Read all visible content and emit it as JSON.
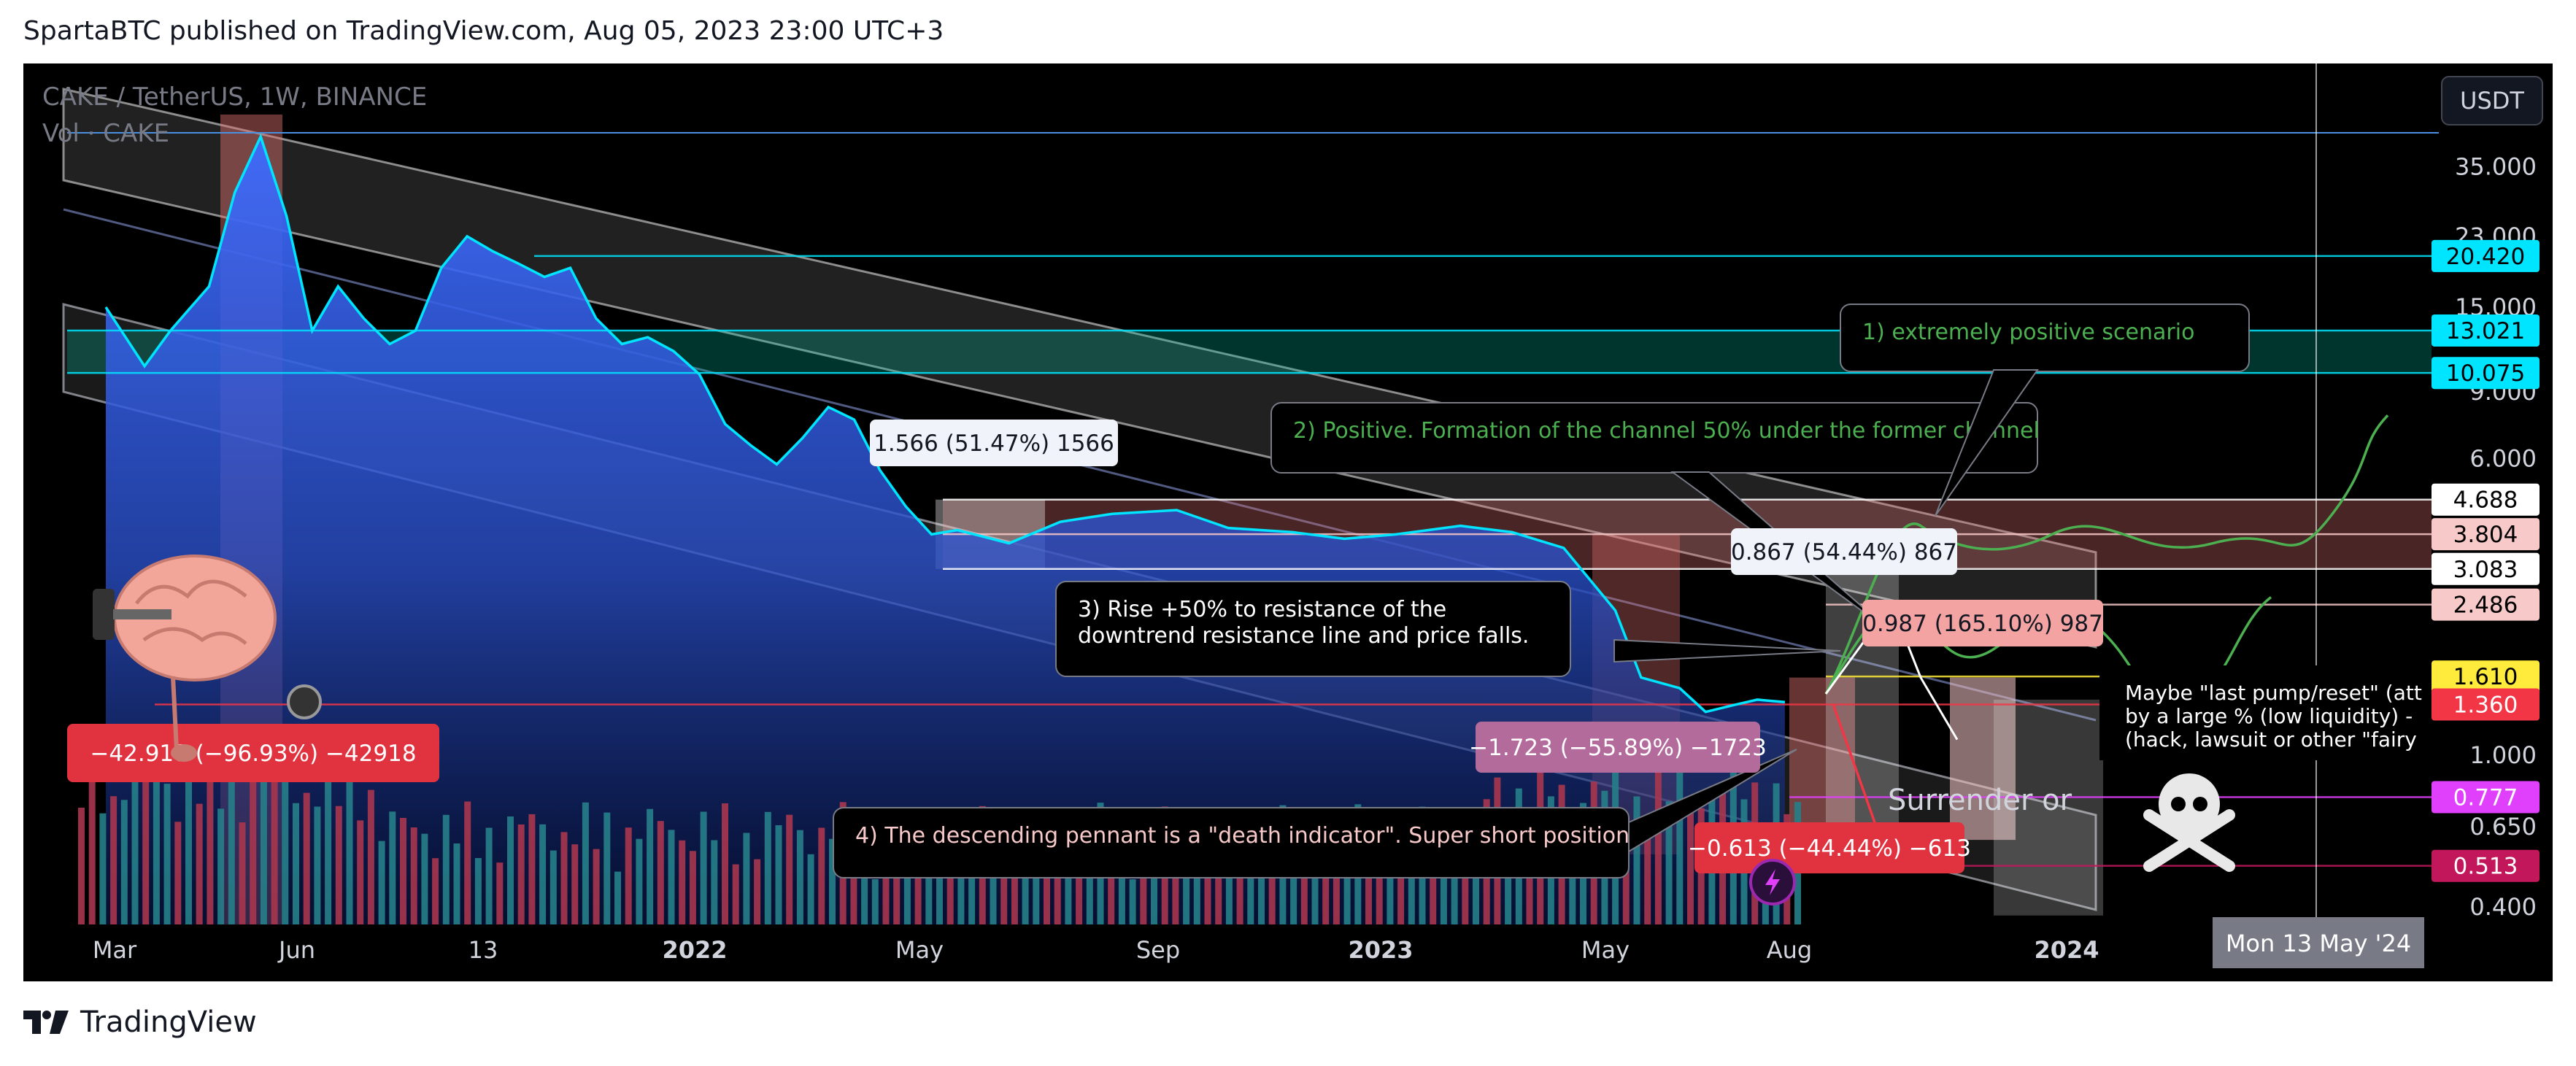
{
  "header": {
    "text": "SpartaBTC published on TradingView.com, Aug 05, 2023 23:00 UTC+3"
  },
  "chart_data": {
    "type": "line",
    "symbol_line": "CAKE / TetherUS, 1W, BINANCE",
    "volume_line": "Vol · CAKE",
    "currency": "USDT",
    "scale": "log",
    "ylim": [
      0.36,
      48
    ],
    "y_ticks": [
      "35.000",
      "23.000",
      "15.000",
      "9.000",
      "6.000",
      "1.000",
      "0.650",
      "0.400"
    ],
    "x_ticks": [
      "Mar",
      "Jun",
      "13",
      "2022",
      "May",
      "Sep",
      "2023",
      "May",
      "Aug",
      "2024"
    ],
    "cursor_date": "Mon 13 May '24",
    "series": [
      {
        "name": "CAKE",
        "color": "#00e5ff",
        "x": [
          "2021-02-01",
          "2021-02-22",
          "2021-03-08",
          "2021-03-29",
          "2021-04-12",
          "2021-04-26",
          "2021-05-10",
          "2021-05-24",
          "2021-06-07",
          "2021-06-21",
          "2021-07-05",
          "2021-07-19",
          "2021-08-02",
          "2021-08-16",
          "2021-08-30",
          "2021-09-13",
          "2021-09-27",
          "2021-10-11",
          "2021-10-25",
          "2021-11-08",
          "2021-11-22",
          "2021-12-06",
          "2021-12-20",
          "2022-01-03",
          "2022-01-17",
          "2022-01-31",
          "2022-02-14",
          "2022-02-28",
          "2022-03-14",
          "2022-03-28",
          "2022-04-11",
          "2022-04-25",
          "2022-05-09",
          "2022-05-23",
          "2022-06-06",
          "2022-07-04",
          "2022-08-01",
          "2022-09-05",
          "2022-10-03",
          "2022-11-07",
          "2022-12-05",
          "2023-01-02",
          "2023-02-06",
          "2023-03-06",
          "2023-04-03",
          "2023-05-01",
          "2023-05-15",
          "2023-06-05",
          "2023-06-19",
          "2023-07-03",
          "2023-07-17",
          "2023-08-01"
        ],
        "y": [
          15.0,
          10.5,
          13.0,
          17.0,
          30.0,
          42.0,
          26.0,
          13.0,
          17.0,
          14.0,
          12.0,
          13.0,
          19.0,
          23.0,
          21.0,
          19.5,
          18.0,
          19.0,
          14.0,
          12.0,
          12.5,
          11.5,
          10.0,
          7.4,
          6.5,
          5.8,
          6.8,
          8.2,
          7.6,
          5.6,
          4.5,
          3.8,
          3.9,
          3.75,
          3.6,
          4.1,
          4.3,
          4.4,
          3.95,
          3.85,
          3.7,
          3.8,
          4.0,
          3.85,
          3.5,
          2.4,
          1.6,
          1.5,
          1.3,
          1.35,
          1.4,
          1.38
        ]
      }
    ],
    "price_labels": [
      {
        "value": "20.420",
        "bg": "#00e5ff",
        "fg": "#000000"
      },
      {
        "value": "13.021",
        "bg": "#00e5ff",
        "fg": "#000000"
      },
      {
        "value": "10.075",
        "bg": "#00e5ff",
        "fg": "#000000"
      },
      {
        "value": "4.688",
        "bg": "#ffffff",
        "fg": "#000000"
      },
      {
        "value": "3.804",
        "bg": "#f8c9c9",
        "fg": "#000000"
      },
      {
        "value": "3.083",
        "bg": "#ffffff",
        "fg": "#000000"
      },
      {
        "value": "2.486",
        "bg": "#f8c9c9",
        "fg": "#000000"
      },
      {
        "value": "1.610",
        "bg": "#ffeb3b",
        "fg": "#000000"
      },
      {
        "value": "1.360",
        "bg": "#f23645",
        "fg": "#ffffff"
      },
      {
        "value": "0.777",
        "bg": "#e040fb",
        "fg": "#ffffff"
      },
      {
        "value": "0.513",
        "bg": "#c2185b",
        "fg": "#ffffff"
      }
    ],
    "measurements": [
      {
        "text": "1.566 (51.47%) 1566",
        "bg": "#f0f3fa",
        "fg": "#131722"
      },
      {
        "text": "0.867 (54.44%) 867",
        "bg": "#f0f3fa",
        "fg": "#131722"
      },
      {
        "text": "0.987 (165.10%) 987",
        "bg": "#f4a3a3",
        "fg": "#131722"
      },
      {
        "text": "−42.918 (−96.93%) −42918",
        "bg": "#e0333f",
        "fg": "#ffffff"
      },
      {
        "text": "−1.723 (−55.89%) −1723",
        "bg": "#b36b9c",
        "fg": "#ffffff"
      },
      {
        "text": "−0.613 (−44.44%) −613",
        "bg": "#e0333f",
        "fg": "#ffffff"
      }
    ],
    "annotations": [
      {
        "text": "1) extremely positive scenario",
        "color": "#4caf50"
      },
      {
        "text": "2) Positive. Formation of the channel 50% under the former channel",
        "color": "#4caf50"
      },
      {
        "text": "3) Rise +50% to resistance of the",
        "color": "#ffffff"
      },
      {
        "text": "downtrend resistance line and price falls.",
        "color": "#ffffff"
      },
      {
        "text": "4) The descending pennant is a \"death indicator\". Super short position.",
        "color": "#f8c9c9"
      },
      {
        "text": "Maybe \"last pump/reset\" (att",
        "color": "#ffffff"
      },
      {
        "text": "by a large % (low liquidity) -",
        "color": "#ffffff"
      },
      {
        "text": "(hack, lawsuit or other \"fairy",
        "color": "#ffffff"
      },
      {
        "text": "Surrender or",
        "color": "#d1d4dc"
      }
    ]
  },
  "footer": {
    "brand": "TradingView"
  },
  "icons": [
    "brain-with-dumbbell-icon",
    "skull-crossbones-icon",
    "lightning-icon",
    "tradingview-logo-icon"
  ]
}
